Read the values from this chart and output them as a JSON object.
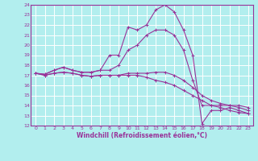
{
  "xlabel": "Windchill (Refroidissement éolien,°C)",
  "bg_color": "#b2eeee",
  "grid_color": "#ffffff",
  "line_color": "#993399",
  "spine_color": "#6666aa",
  "xlim": [
    -0.5,
    23.5
  ],
  "ylim": [
    12,
    24
  ],
  "xticks": [
    0,
    1,
    2,
    3,
    4,
    5,
    6,
    7,
    8,
    9,
    10,
    11,
    12,
    13,
    14,
    15,
    16,
    17,
    18,
    19,
    20,
    21,
    22,
    23
  ],
  "yticks": [
    12,
    13,
    14,
    15,
    16,
    17,
    18,
    19,
    20,
    21,
    22,
    23,
    24
  ],
  "series": [
    [
      17.2,
      17.1,
      17.5,
      17.8,
      17.5,
      17.3,
      17.3,
      17.5,
      19.0,
      19.0,
      21.8,
      21.5,
      22.0,
      23.5,
      24.0,
      23.3,
      21.5,
      19.0,
      12.2,
      13.5,
      13.5,
      13.8,
      13.5,
      13.2
    ],
    [
      17.2,
      17.1,
      17.5,
      17.8,
      17.5,
      17.3,
      17.3,
      17.5,
      17.5,
      18.0,
      19.5,
      20.0,
      21.0,
      21.5,
      21.5,
      21.0,
      19.5,
      16.5,
      14.0,
      14.0,
      14.0,
      14.0,
      14.0,
      13.8
    ],
    [
      17.2,
      17.0,
      17.2,
      17.3,
      17.2,
      17.0,
      16.9,
      17.0,
      17.0,
      17.0,
      17.2,
      17.2,
      17.2,
      17.3,
      17.3,
      17.0,
      16.5,
      15.8,
      15.0,
      14.5,
      14.2,
      14.0,
      13.8,
      13.5
    ],
    [
      17.2,
      17.0,
      17.2,
      17.3,
      17.2,
      17.0,
      16.9,
      17.0,
      17.0,
      17.0,
      17.0,
      17.0,
      16.8,
      16.5,
      16.3,
      16.0,
      15.5,
      15.0,
      14.5,
      14.0,
      13.8,
      13.5,
      13.3,
      13.2
    ]
  ]
}
